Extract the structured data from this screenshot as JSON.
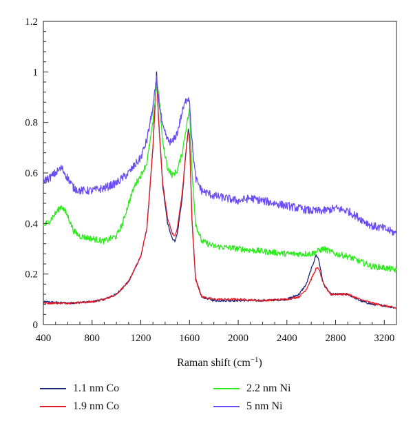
{
  "chart_data": {
    "type": "line",
    "title": "",
    "xlabel": "Raman shift (cm",
    "xlabel_sup": "−1",
    "xlabel_close": ")",
    "ylabel": "",
    "xlim": [
      400,
      3300
    ],
    "ylim": [
      0,
      1.2
    ],
    "xticks": [
      400,
      800,
      1200,
      1600,
      2000,
      2400,
      2800,
      3200
    ],
    "yticks": [
      0,
      0.2,
      0.4,
      0.6,
      0.8,
      1,
      1.2
    ],
    "ytick_labels": [
      "0",
      "0.2",
      "0.4",
      "0.6",
      "0.8",
      "1",
      "1.2"
    ],
    "grid": false,
    "legend_position": "bottom",
    "series": [
      {
        "name": "1.1 nm Co",
        "color": "#1a237e",
        "x": [
          400,
          600,
          800,
          900,
          1000,
          1100,
          1200,
          1250,
          1300,
          1330,
          1345,
          1380,
          1420,
          1460,
          1480,
          1500,
          1540,
          1570,
          1590,
          1600,
          1620,
          1650,
          1700,
          1800,
          2000,
          2200,
          2400,
          2500,
          2560,
          2600,
          2640,
          2660,
          2700,
          2760,
          2800,
          2900,
          3000,
          3100,
          3200,
          3300
        ],
        "y": [
          0.09,
          0.085,
          0.09,
          0.1,
          0.12,
          0.17,
          0.27,
          0.38,
          0.7,
          1.0,
          0.82,
          0.55,
          0.4,
          0.34,
          0.33,
          0.36,
          0.5,
          0.68,
          0.77,
          0.75,
          0.42,
          0.18,
          0.11,
          0.095,
          0.095,
          0.095,
          0.1,
          0.12,
          0.16,
          0.22,
          0.275,
          0.26,
          0.16,
          0.12,
          0.12,
          0.12,
          0.095,
          0.08,
          0.075,
          0.065
        ]
      },
      {
        "name": "1.9 nm Co",
        "color": "#e51c23",
        "x": [
          400,
          600,
          800,
          900,
          1000,
          1100,
          1200,
          1250,
          1300,
          1330,
          1345,
          1380,
          1420,
          1460,
          1480,
          1500,
          1540,
          1570,
          1590,
          1600,
          1620,
          1650,
          1700,
          1800,
          2000,
          2200,
          2400,
          2500,
          2560,
          2600,
          2640,
          2660,
          2700,
          2760,
          2800,
          2900,
          3000,
          3100,
          3200,
          3300
        ],
        "y": [
          0.085,
          0.085,
          0.09,
          0.1,
          0.12,
          0.17,
          0.27,
          0.38,
          0.7,
          0.98,
          0.82,
          0.56,
          0.42,
          0.36,
          0.35,
          0.38,
          0.52,
          0.68,
          0.76,
          0.75,
          0.42,
          0.18,
          0.11,
          0.1,
          0.1,
          0.095,
          0.1,
          0.11,
          0.14,
          0.18,
          0.22,
          0.225,
          0.16,
          0.12,
          0.12,
          0.12,
          0.1,
          0.085,
          0.075,
          0.065
        ]
      },
      {
        "name": "2.2 nm Ni",
        "color": "#2bea1a",
        "x": [
          400,
          450,
          500,
          550,
          600,
          650,
          700,
          800,
          900,
          1000,
          1050,
          1100,
          1150,
          1200,
          1250,
          1300,
          1330,
          1345,
          1380,
          1420,
          1460,
          1500,
          1540,
          1580,
          1600,
          1620,
          1650,
          1700,
          1800,
          2000,
          2200,
          2400,
          2500,
          2600,
          2700,
          2800,
          2900,
          3000,
          3100,
          3200,
          3300
        ],
        "y": [
          0.39,
          0.41,
          0.44,
          0.47,
          0.43,
          0.37,
          0.35,
          0.34,
          0.33,
          0.35,
          0.4,
          0.48,
          0.55,
          0.59,
          0.64,
          0.8,
          0.96,
          0.93,
          0.72,
          0.62,
          0.59,
          0.61,
          0.68,
          0.8,
          0.85,
          0.62,
          0.4,
          0.33,
          0.31,
          0.3,
          0.29,
          0.28,
          0.28,
          0.28,
          0.3,
          0.28,
          0.27,
          0.25,
          0.23,
          0.225,
          0.215
        ]
      },
      {
        "name": "5 nm Ni",
        "color": "#6a4cf5",
        "x": [
          400,
          450,
          500,
          550,
          600,
          650,
          700,
          800,
          900,
          1000,
          1100,
          1200,
          1250,
          1300,
          1330,
          1345,
          1380,
          1420,
          1460,
          1500,
          1540,
          1580,
          1600,
          1620,
          1650,
          1700,
          1800,
          1900,
          2000,
          2100,
          2200,
          2300,
          2400,
          2500,
          2600,
          2700,
          2800,
          2900,
          3000,
          3100,
          3200,
          3300
        ],
        "y": [
          0.57,
          0.58,
          0.6,
          0.62,
          0.58,
          0.54,
          0.53,
          0.53,
          0.54,
          0.56,
          0.6,
          0.66,
          0.73,
          0.86,
          0.97,
          0.9,
          0.78,
          0.73,
          0.72,
          0.76,
          0.84,
          0.9,
          0.89,
          0.73,
          0.58,
          0.53,
          0.51,
          0.5,
          0.49,
          0.5,
          0.49,
          0.48,
          0.47,
          0.46,
          0.45,
          0.45,
          0.46,
          0.45,
          0.42,
          0.39,
          0.38,
          0.36
        ]
      }
    ]
  }
}
